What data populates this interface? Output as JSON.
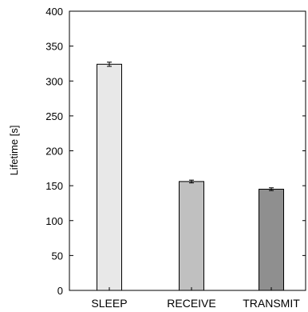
{
  "chart_data": {
    "type": "bar",
    "categories": [
      "SLEEP",
      "RECEIVE",
      "TRANSMIT"
    ],
    "values": [
      324,
      156,
      145
    ],
    "errors": [
      3,
      2,
      2
    ],
    "colors": [
      "#e8e8e8",
      "#c0c0c0",
      "#8f8f8f"
    ],
    "ylabel": "Lifetime [s]",
    "xlabel": "",
    "ylim": [
      0,
      400
    ],
    "yticks": [
      "0",
      "50",
      "100",
      "150",
      "200",
      "250",
      "300",
      "350",
      "400"
    ],
    "grid": false
  }
}
